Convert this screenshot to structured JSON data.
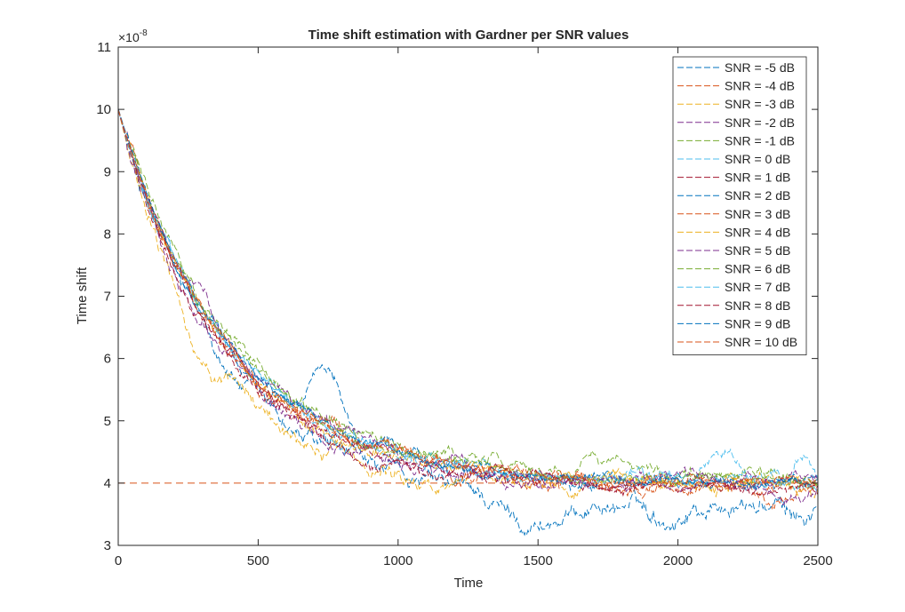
{
  "chart_data": {
    "type": "line",
    "title": "Time shift estimation with Gardner per SNR values",
    "xlabel": "Time",
    "ylabel": "Time shift",
    "y_exponent_label": "×10",
    "y_exponent_power": "-8",
    "xlim": [
      0,
      2500
    ],
    "ylim": [
      3,
      11
    ],
    "xticks": [
      "0",
      "500",
      "1000",
      "1500",
      "2000",
      "2500"
    ],
    "yticks": [
      "3",
      "4",
      "5",
      "6",
      "7",
      "8",
      "9",
      "10",
      "11"
    ],
    "grid": false,
    "legend_position": "top-right",
    "reference_line": {
      "y": 4,
      "color": "#D95319",
      "style": "dashed"
    },
    "series": [
      {
        "name": "SNR = -5 dB",
        "color": "#0072BD",
        "start": 10,
        "floor": 3.6,
        "tau": 380,
        "noise": 0.14,
        "dev": [
          [
            1300,
            1700,
            -0.35
          ],
          [
            1850,
            2050,
            -0.2
          ],
          [
            2350,
            2500,
            -0.2
          ]
        ]
      },
      {
        "name": "SNR = -4 dB",
        "color": "#D95319",
        "start": 10,
        "floor": 3.9,
        "tau": 400,
        "noise": 0.1,
        "dev": [
          [
            2250,
            2450,
            -0.25
          ]
        ]
      },
      {
        "name": "SNR = -3 dB",
        "color": "#EDB120",
        "start": 10,
        "floor": 3.95,
        "tau": 320,
        "noise": 0.12,
        "dev": [
          [
            180,
            420,
            -0.5
          ],
          [
            1000,
            1200,
            -0.1
          ]
        ]
      },
      {
        "name": "SNR = -2 dB",
        "color": "#7E2F8E",
        "start": 10,
        "floor": 3.9,
        "tau": 380,
        "noise": 0.1,
        "dev": [
          [
            2300,
            2500,
            -0.2
          ]
        ]
      },
      {
        "name": "SNR = -1 dB",
        "color": "#77AC30",
        "start": 10,
        "floor": 4.1,
        "tau": 400,
        "noise": 0.1,
        "dev": [
          [
            1600,
            1850,
            0.2
          ]
        ]
      },
      {
        "name": "SNR = 0 dB",
        "color": "#4DBEEE",
        "start": 10,
        "floor": 4.05,
        "tau": 390,
        "noise": 0.1,
        "dev": [
          [
            2050,
            2250,
            0.35
          ],
          [
            2400,
            2500,
            0.4
          ]
        ]
      },
      {
        "name": "SNR = 1 dB",
        "color": "#A2142F",
        "start": 10,
        "floor": 3.95,
        "tau": 370,
        "noise": 0.09,
        "dev": [
          [
            820,
            950,
            -0.2
          ]
        ]
      },
      {
        "name": "SNR = 2 dB",
        "color": "#0072BD",
        "start": 10,
        "floor": 4.0,
        "tau": 390,
        "noise": 0.09,
        "dev": [
          [
            650,
            850,
            0.9
          ]
        ]
      },
      {
        "name": "SNR = 3 dB",
        "color": "#D95319",
        "start": 10,
        "floor": 4.0,
        "tau": 385,
        "noise": 0.08,
        "dev": []
      },
      {
        "name": "SNR = 4 dB",
        "color": "#EDB120",
        "start": 10,
        "floor": 4.0,
        "tau": 380,
        "noise": 0.08,
        "dev": []
      },
      {
        "name": "SNR = 5 dB",
        "color": "#7E2F8E",
        "start": 10,
        "floor": 4.0,
        "tau": 410,
        "noise": 0.08,
        "dev": [
          [
            250,
            350,
            0.3
          ]
        ]
      },
      {
        "name": "SNR = 6 dB",
        "color": "#77AC30",
        "start": 10,
        "floor": 4.05,
        "tau": 400,
        "noise": 0.07,
        "dev": []
      },
      {
        "name": "SNR = 7 dB",
        "color": "#4DBEEE",
        "start": 10,
        "floor": 4.0,
        "tau": 395,
        "noise": 0.07,
        "dev": []
      },
      {
        "name": "SNR = 8 dB",
        "color": "#A2142F",
        "start": 10,
        "floor": 3.95,
        "tau": 390,
        "noise": 0.07,
        "dev": []
      },
      {
        "name": "SNR = 9 dB",
        "color": "#0072BD",
        "start": 10,
        "floor": 4.0,
        "tau": 400,
        "noise": 0.06,
        "dev": []
      },
      {
        "name": "SNR = 10 dB",
        "color": "#D95319",
        "start": 10,
        "floor": 4.0,
        "tau": 395,
        "noise": 0.06,
        "dev": []
      }
    ]
  }
}
